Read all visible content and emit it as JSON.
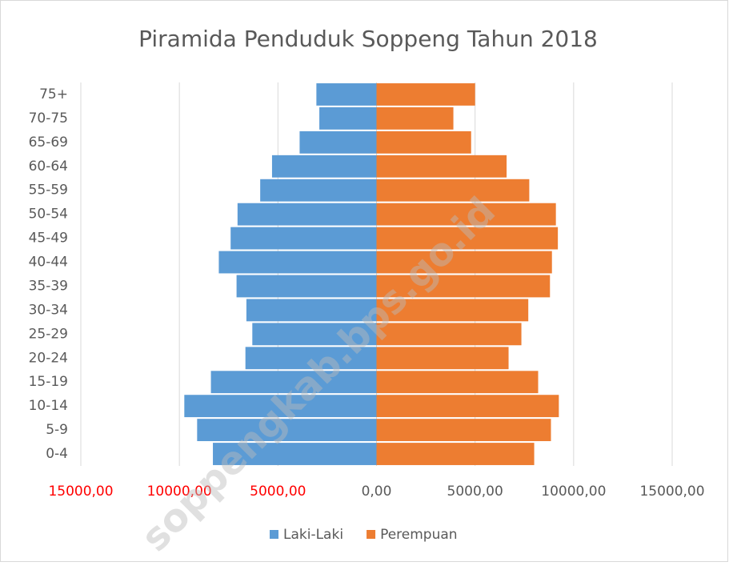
{
  "chart_data": {
    "type": "pyramid",
    "title": "Piramida Penduduk Soppeng Tahun 2018",
    "watermark": "soppengkab.bps.go.id",
    "categories": [
      "0-4",
      "5-9",
      "10-14",
      "15-19",
      "20-24",
      "25-29",
      "30-34",
      "35-39",
      "40-44",
      "45-49",
      "50-54",
      "55-59",
      "60-64",
      "65-69",
      "70-75",
      "75+"
    ],
    "series": [
      {
        "name": "Laki-Laki",
        "color": "#5b9bd5",
        "values": [
          -8300,
          -9100,
          -9750,
          -8400,
          -6650,
          -6300,
          -6600,
          -7100,
          -8000,
          -7400,
          -7050,
          -5900,
          -5300,
          -3900,
          -2900,
          -3050
        ]
      },
      {
        "name": "Perempuan",
        "color": "#ed7d31",
        "values": [
          8000,
          8850,
          9250,
          8200,
          6700,
          7350,
          7700,
          8800,
          8900,
          9200,
          9100,
          7750,
          6600,
          4800,
          3900,
          5000
        ]
      }
    ],
    "xlim": [
      -15000,
      15000
    ],
    "xticks": [
      {
        "value": -15000,
        "label": "15000,00"
      },
      {
        "value": -10000,
        "label": "10000,00"
      },
      {
        "value": -5000,
        "label": "5000,00"
      },
      {
        "value": 0,
        "label": "0,00"
      },
      {
        "value": 5000,
        "label": "5000,00"
      },
      {
        "value": 10000,
        "label": "10000,00"
      },
      {
        "value": 15000,
        "label": "15000,00"
      }
    ],
    "negative_tick_color": "#ff0000",
    "grid": true,
    "legend": "bottom"
  }
}
